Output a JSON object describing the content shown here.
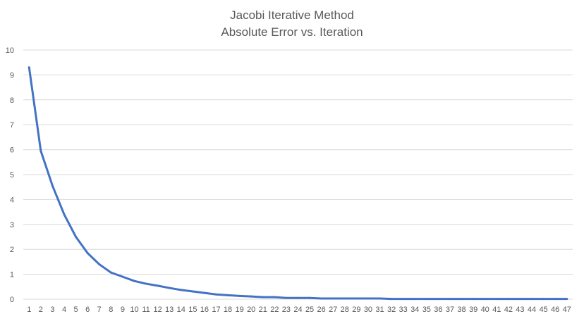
{
  "chart_data": {
    "type": "line",
    "title_lines": [
      "Jacobi Iterative Method",
      "Absolute Error vs. Iteration"
    ],
    "xlabel": "",
    "ylabel": "",
    "ylim": [
      0,
      10
    ],
    "y_ticks": [
      "0",
      "1",
      "2",
      "3",
      "4",
      "5",
      "6",
      "7",
      "8",
      "9",
      "10"
    ],
    "categories": [
      "1",
      "2",
      "3",
      "4",
      "5",
      "6",
      "7",
      "8",
      "9",
      "10",
      "11",
      "12",
      "13",
      "14",
      "15",
      "16",
      "17",
      "18",
      "19",
      "20",
      "21",
      "22",
      "23",
      "24",
      "25",
      "26",
      "27",
      "28",
      "29",
      "30",
      "31",
      "32",
      "33",
      "34",
      "35",
      "36",
      "37",
      "38",
      "39",
      "40",
      "41",
      "42",
      "43",
      "44",
      "45",
      "46",
      "47"
    ],
    "series": [
      {
        "color": "#4472c4",
        "values": [
          9.3,
          5.95,
          4.55,
          3.4,
          2.5,
          1.85,
          1.4,
          1.07,
          0.9,
          0.73,
          0.62,
          0.54,
          0.45,
          0.37,
          0.31,
          0.25,
          0.19,
          0.16,
          0.13,
          0.11,
          0.08,
          0.08,
          0.05,
          0.05,
          0.05,
          0.03,
          0.03,
          0.03,
          0.03,
          0.03,
          0.03,
          0.01,
          0.01,
          0.01,
          0.01,
          0.01,
          0.01,
          0.01,
          0.01,
          0.01,
          0.01,
          0.01,
          0.01,
          0.01,
          0.01,
          0.01,
          0.01
        ]
      }
    ],
    "grid": true,
    "legend": "none"
  }
}
